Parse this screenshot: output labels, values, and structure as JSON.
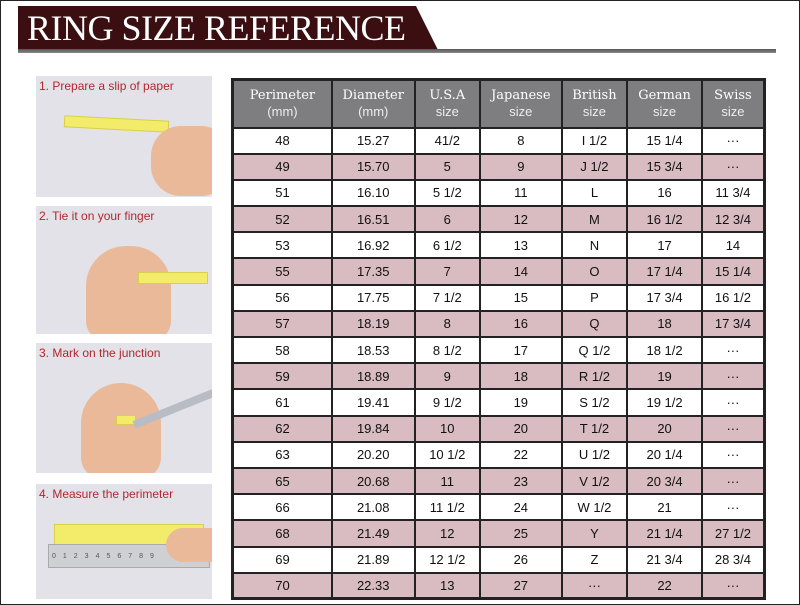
{
  "title": "RING SIZE REFERENCE",
  "steps": [
    "1. Prepare a slip of paper",
    "2. Tie it on your finger",
    "3. Mark on the junction",
    "4. Measure the perimeter"
  ],
  "ruler_ticks": "0123456789",
  "colors": {
    "banner": "#3b0f12",
    "header": "#7e7d80",
    "alt_row": "#d8bcc1",
    "step_text": "#b0282e"
  },
  "columns": [
    {
      "name": "Perimeter",
      "unit": "(mm)"
    },
    {
      "name": "Diameter",
      "unit": "(mm)"
    },
    {
      "name": "U.S.A",
      "unit": "size"
    },
    {
      "name": "Japanese",
      "unit": "size"
    },
    {
      "name": "British",
      "unit": "size"
    },
    {
      "name": "German",
      "unit": "size"
    },
    {
      "name": "Swiss",
      "unit": "size"
    }
  ],
  "rows": [
    [
      "48",
      "15.27",
      "41/2",
      "8",
      "I 1/2",
      "15 1/4",
      "···"
    ],
    [
      "49",
      "15.70",
      "5",
      "9",
      "J 1/2",
      "15 3/4",
      "···"
    ],
    [
      "51",
      "16.10",
      "5 1/2",
      "11",
      "L",
      "16",
      "11 3/4"
    ],
    [
      "52",
      "16.51",
      "6",
      "12",
      "M",
      "16 1/2",
      "12 3/4"
    ],
    [
      "53",
      "16.92",
      "6 1/2",
      "13",
      "N",
      "17",
      "14"
    ],
    [
      "55",
      "17.35",
      "7",
      "14",
      "O",
      "17 1/4",
      "15 1/4"
    ],
    [
      "56",
      "17.75",
      "7 1/2",
      "15",
      "P",
      "17 3/4",
      "16 1/2"
    ],
    [
      "57",
      "18.19",
      "8",
      "16",
      "Q",
      "18",
      "17 3/4"
    ],
    [
      "58",
      "18.53",
      "8 1/2",
      "17",
      "Q  1/2",
      "18 1/2",
      "···"
    ],
    [
      "59",
      "18.89",
      "9",
      "18",
      "R 1/2",
      "19",
      "···"
    ],
    [
      "61",
      "19.41",
      "9 1/2",
      "19",
      "S 1/2",
      "19 1/2",
      "···"
    ],
    [
      "62",
      "19.84",
      "10",
      "20",
      "T 1/2",
      "20",
      "···"
    ],
    [
      "63",
      "20.20",
      "10 1/2",
      "22",
      "U 1/2",
      "20 1/4",
      "···"
    ],
    [
      "65",
      "20.68",
      "11",
      "23",
      "V 1/2",
      "20 3/4",
      "···"
    ],
    [
      "66",
      "21.08",
      "11 1/2",
      "24",
      "W 1/2",
      "21",
      "···"
    ],
    [
      "68",
      "21.49",
      "12",
      "25",
      "Y",
      "21 1/4",
      "27 1/2"
    ],
    [
      "69",
      "21.89",
      "12 1/2",
      "26",
      "Z",
      "21 3/4",
      "28 3/4"
    ],
    [
      "70",
      "22.33",
      "13",
      "27",
      "···",
      "22",
      "···"
    ]
  ]
}
